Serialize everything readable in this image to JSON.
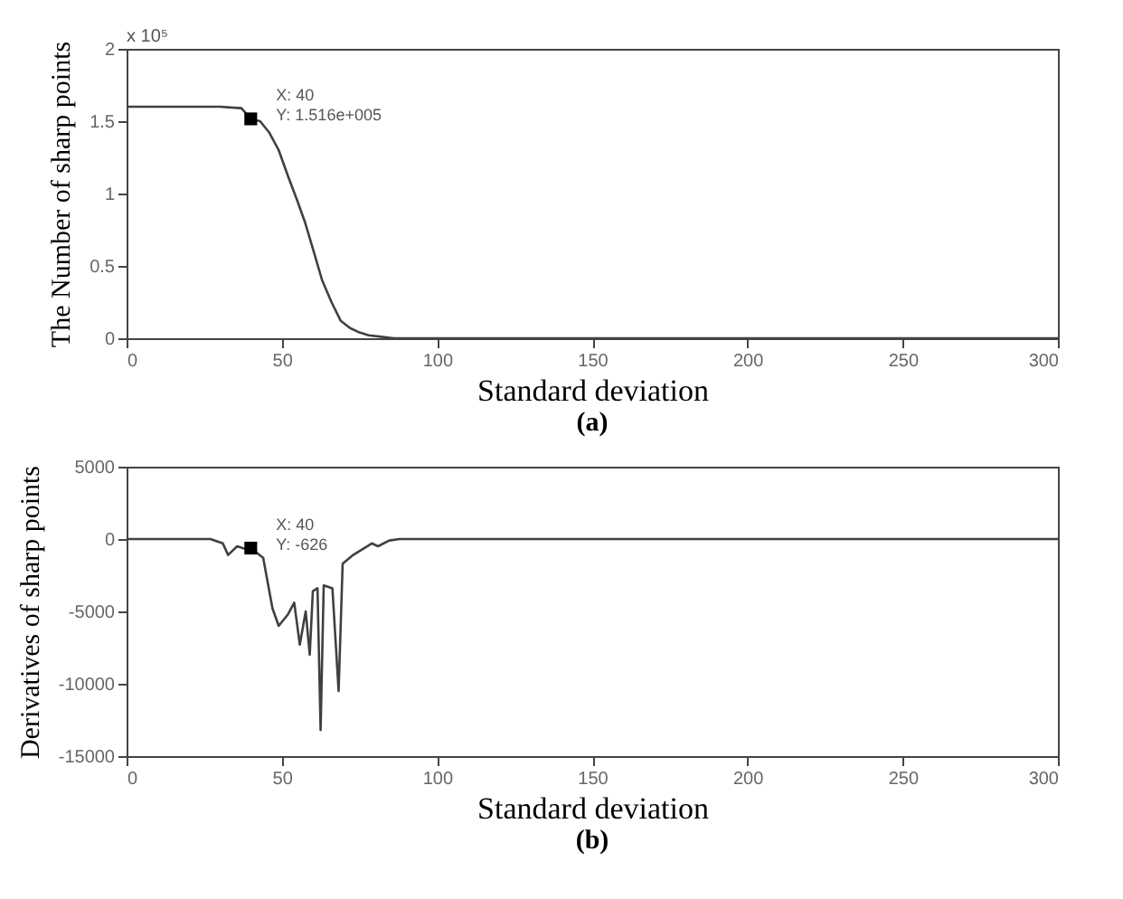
{
  "chart_data": [
    {
      "type": "line",
      "title": "(a)",
      "xlabel": "Standard deviation",
      "ylabel": "The Number of sharp points",
      "xlim": [
        0,
        300
      ],
      "xticks": [
        0,
        50,
        100,
        150,
        200,
        250,
        300
      ],
      "ylim": [
        0,
        2
      ],
      "yticks": [
        0,
        0.5,
        1,
        1.5,
        2
      ],
      "grid": false,
      "annotations": [
        "x 10⁵",
        {
          "text": "X: 40\nY: 1.516e+005",
          "x": 40,
          "y": 1.516
        }
      ],
      "series": [
        {
          "color": "#404040",
          "x": [
            0,
            30,
            37,
            40,
            43,
            46,
            49,
            52,
            55,
            57.5,
            60,
            63,
            66,
            69,
            72,
            75,
            78,
            82,
            86,
            90,
            300
          ],
          "values": [
            1.6,
            1.6,
            1.59,
            1.516,
            1.5,
            1.42,
            1.3,
            1.12,
            0.95,
            0.8,
            0.62,
            0.4,
            0.25,
            0.12,
            0.07,
            0.04,
            0.02,
            0.01,
            0,
            0,
            0
          ]
        }
      ]
    },
    {
      "type": "line",
      "title": "(b)",
      "xlabel": "Standard deviation",
      "ylabel": "Derivatives of sharp points",
      "xlim": [
        0,
        300
      ],
      "xticks": [
        0,
        50,
        100,
        150,
        200,
        250,
        300
      ],
      "ylim": [
        -15000,
        5000
      ],
      "yticks": [
        -15000,
        -10000,
        -5000,
        0,
        5000
      ],
      "grid": false,
      "annotations": [
        {
          "text": "X: 40\nY: -626",
          "x": 40,
          "y": -626
        }
      ],
      "series": [
        {
          "color": "#404040",
          "x": [
            0,
            27,
            31,
            32.7,
            35.6,
            38.5,
            40,
            44,
            47,
            49,
            52,
            54,
            55.8,
            57.7,
            59,
            60,
            61.5,
            62.5,
            63.5,
            66.3,
            68.3,
            69.6,
            73,
            79,
            81,
            84.6,
            88,
            300
          ],
          "values": [
            0,
            0,
            -300,
            -1100,
            -500,
            -700,
            -626,
            -1300,
            -4800,
            -6000,
            -5200,
            -4400,
            -7300,
            -5000,
            -8000,
            -3600,
            -3400,
            -13200,
            -3200,
            -3400,
            -10500,
            -1700,
            -1100,
            -300,
            -500,
            -100,
            0,
            0
          ]
        }
      ]
    }
  ]
}
